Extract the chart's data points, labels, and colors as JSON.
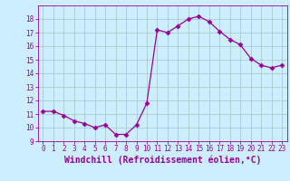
{
  "x": [
    0,
    1,
    2,
    3,
    4,
    5,
    6,
    7,
    8,
    9,
    10,
    11,
    12,
    13,
    14,
    15,
    16,
    17,
    18,
    19,
    20,
    21,
    22,
    23
  ],
  "y": [
    11.2,
    11.2,
    10.9,
    10.5,
    10.3,
    10.0,
    10.2,
    9.5,
    9.5,
    10.2,
    11.8,
    17.2,
    17.0,
    17.5,
    18.0,
    18.2,
    17.8,
    17.1,
    16.5,
    16.1,
    15.1,
    14.6,
    14.4,
    14.6
  ],
  "xlabel": "Windchill (Refroidissement éolien,°C)",
  "ylim": [
    9,
    19
  ],
  "xlim_min": -0.5,
  "xlim_max": 23.5,
  "yticks": [
    9,
    10,
    11,
    12,
    13,
    14,
    15,
    16,
    17,
    18
  ],
  "xticks": [
    0,
    1,
    2,
    3,
    4,
    5,
    6,
    7,
    8,
    9,
    10,
    11,
    12,
    13,
    14,
    15,
    16,
    17,
    18,
    19,
    20,
    21,
    22,
    23
  ],
  "line_color": "#990099",
  "marker": "D",
  "marker_size": 2.5,
  "bg_color": "#cceeff",
  "grid_color": "#aacccc",
  "tick_label_fontsize": 5.5,
  "xlabel_fontsize": 7.0
}
